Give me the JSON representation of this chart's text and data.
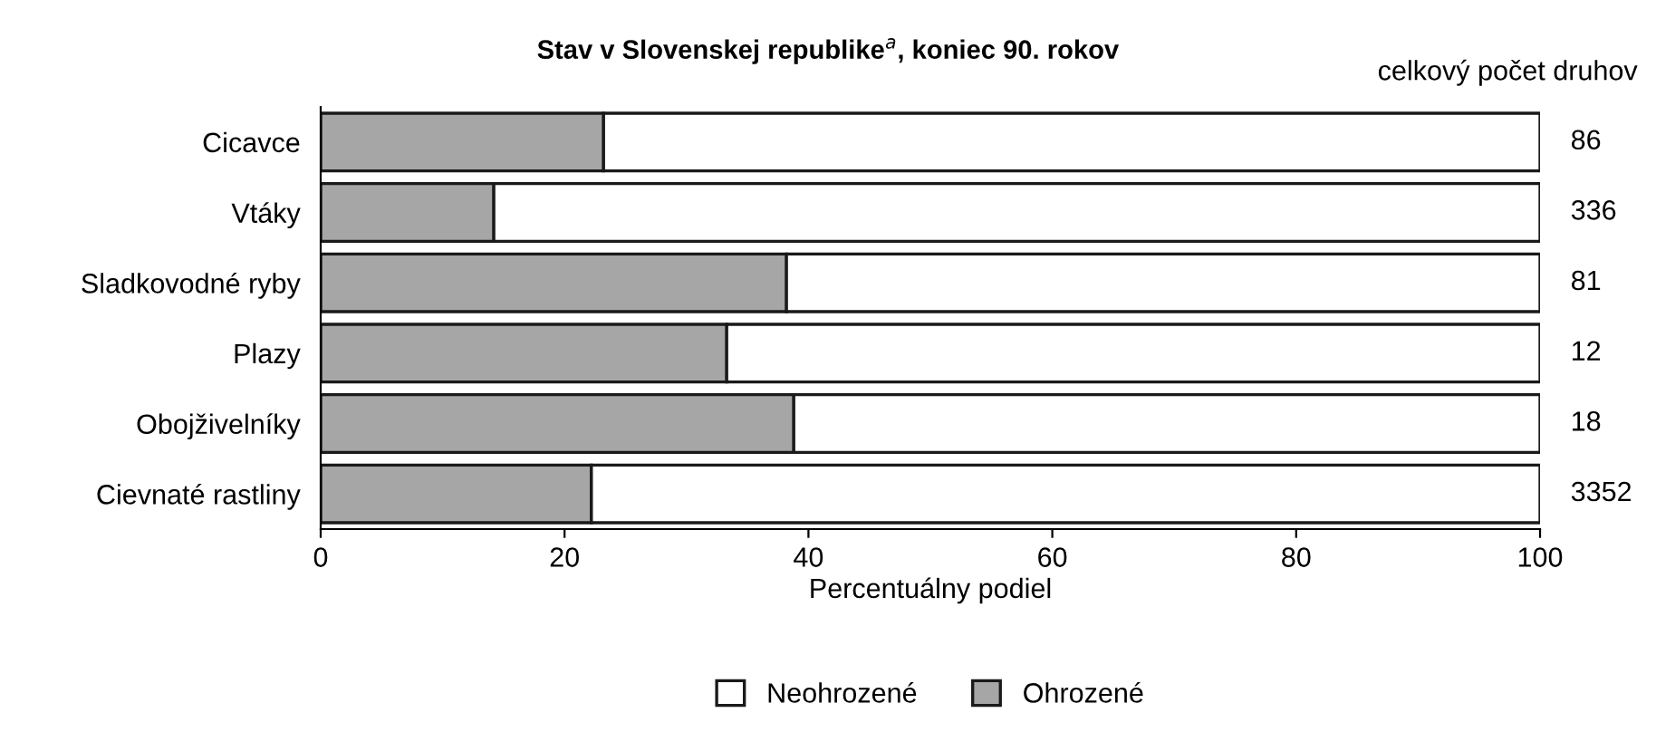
{
  "chart_data": {
    "type": "bar",
    "orientation": "horizontal",
    "stacked": true,
    "title": "Stav v Slovenskej republike$^{a}$, koniec 90. rokov",
    "xlabel": "Percentuálny podiel",
    "categories": [
      "Cicavce",
      "Vtáky",
      "Sladkovodné ryby",
      "Plazy",
      "Obojživelníky",
      "Cievnaté rastliny"
    ],
    "series": [
      {
        "name": "Ohrozené",
        "color": "#a6a6a6",
        "values": [
          23.2,
          14.2,
          38.2,
          33.3,
          38.8,
          22.2
        ]
      },
      {
        "name": "Neohrozené",
        "color": "#ffffff",
        "values": [
          76.8,
          85.8,
          61.8,
          66.7,
          61.2,
          77.8
        ]
      }
    ],
    "xlim": [
      0,
      100
    ],
    "xticks": [
      0,
      20,
      40,
      60,
      80,
      100
    ],
    "grid": false,
    "legend": "bottom",
    "annotations": [
      "celkový počet druhov",
      "86",
      "336",
      "81",
      "12",
      "18",
      "3352"
    ]
  }
}
